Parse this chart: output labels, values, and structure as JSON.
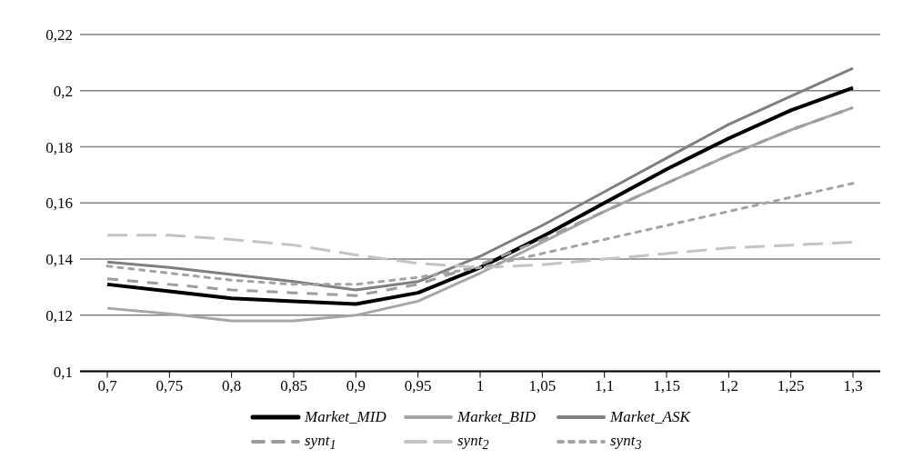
{
  "chart_data": {
    "type": "line",
    "categories": [
      "0,7",
      "0,75",
      "0,8",
      "0,85",
      "0,9",
      "0,95",
      "1",
      "1,05",
      "1,1",
      "1,15",
      "1,2",
      "1,25",
      "1,3"
    ],
    "ylim": [
      0.1,
      0.22
    ],
    "yticks": [
      {
        "value": 0.1,
        "label": "0,1"
      },
      {
        "value": 0.12,
        "label": "0,12"
      },
      {
        "value": 0.14,
        "label": "0,14"
      },
      {
        "value": 0.16,
        "label": "0,16"
      },
      {
        "value": 0.18,
        "label": "0,18"
      },
      {
        "value": 0.2,
        "label": "0,2"
      },
      {
        "value": 0.22,
        "label": "0,22"
      }
    ],
    "grid": "y",
    "legend": "bottom",
    "marker": "none",
    "series": [
      {
        "name": "Market_MID",
        "color": "#000000",
        "line_style": "solid",
        "values": [
          0.131,
          0.1285,
          0.126,
          0.125,
          0.124,
          0.128,
          0.137,
          0.148,
          0.16,
          0.172,
          0.183,
          0.193,
          0.201
        ]
      },
      {
        "name": "Market_BID",
        "color": "#a6a6a6",
        "line_style": "solid",
        "values": [
          0.1225,
          0.1205,
          0.118,
          0.118,
          0.12,
          0.125,
          0.135,
          0.146,
          0.157,
          0.167,
          0.177,
          0.186,
          0.194
        ]
      },
      {
        "name": "Market_ASK",
        "color": "#7f7f7f",
        "line_style": "solid",
        "values": [
          0.139,
          0.137,
          0.1345,
          0.132,
          0.129,
          0.132,
          0.141,
          0.152,
          0.164,
          0.176,
          0.188,
          0.198,
          0.208
        ]
      },
      {
        "name": "synt$_{1}$",
        "color": "#9c9c9c",
        "line_style": "dashed",
        "values": [
          0.133,
          0.131,
          0.129,
          0.128,
          0.127,
          0.131,
          0.138,
          0.147,
          0.157,
          0.167,
          0.177,
          0.186,
          0.194
        ]
      },
      {
        "name": "synt$_{2}$",
        "color": "#c4c4c4",
        "line_style": "dashed",
        "values": [
          0.1485,
          0.1485,
          0.147,
          0.145,
          0.1415,
          0.1385,
          0.137,
          0.138,
          0.14,
          0.142,
          0.144,
          0.145,
          0.146
        ]
      },
      {
        "name": "synt$_{3}$",
        "color": "#a3a3a3",
        "line_style": "dotted",
        "values": [
          0.1375,
          0.135,
          0.1325,
          0.131,
          0.131,
          0.1335,
          0.137,
          0.142,
          0.147,
          0.152,
          0.157,
          0.162,
          0.167
        ]
      }
    ]
  }
}
